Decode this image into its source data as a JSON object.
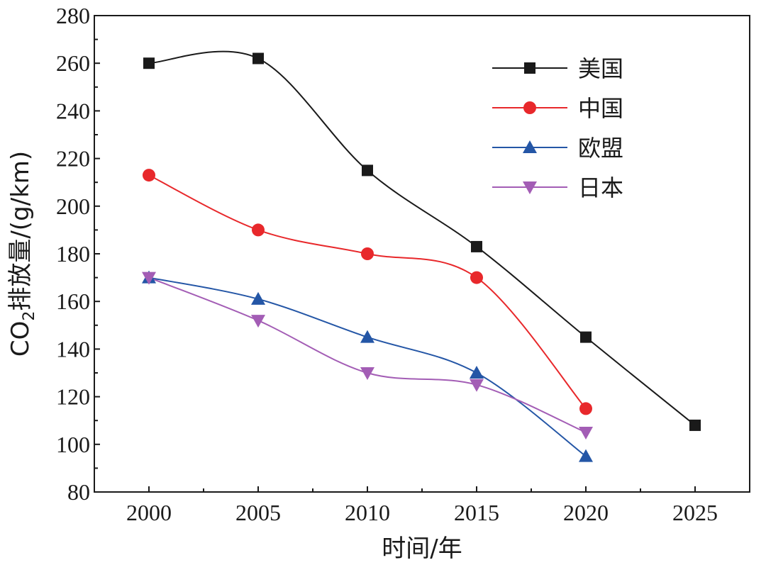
{
  "chart_data": {
    "type": "line",
    "title": "",
    "xlabel": "时间/年",
    "ylabel": "CO2排放量/(g/km)",
    "ylabel_parts": {
      "pre": "CO",
      "sub": "2",
      "post": "排放量/(g/km)"
    },
    "xlim": [
      1997.5,
      2027.5
    ],
    "ylim": [
      80,
      280
    ],
    "x_ticks": [
      2000,
      2005,
      2010,
      2015,
      2020,
      2025
    ],
    "y_ticks": [
      80,
      100,
      120,
      140,
      160,
      180,
      200,
      220,
      240,
      260,
      280
    ],
    "grid": false,
    "legend_position": "top-right",
    "series": [
      {
        "name": "美国",
        "color": "#1a1a1a",
        "marker": "square",
        "x": [
          2000,
          2005,
          2010,
          2015,
          2020,
          2025
        ],
        "values": [
          260,
          262,
          215,
          183,
          145,
          108
        ]
      },
      {
        "name": "中国",
        "color": "#e8282b",
        "marker": "circle",
        "x": [
          2000,
          2005,
          2010,
          2015,
          2020
        ],
        "values": [
          213,
          190,
          180,
          170,
          115
        ]
      },
      {
        "name": "欧盟",
        "color": "#2456a6",
        "marker": "triangle-up",
        "x": [
          2000,
          2005,
          2010,
          2015,
          2020
        ],
        "values": [
          170,
          161,
          145,
          130,
          95
        ]
      },
      {
        "name": "日本",
        "color": "#a35db5",
        "marker": "triangle-down",
        "x": [
          2000,
          2005,
          2010,
          2015,
          2020
        ],
        "values": [
          170,
          152,
          130,
          125,
          105
        ]
      }
    ]
  }
}
